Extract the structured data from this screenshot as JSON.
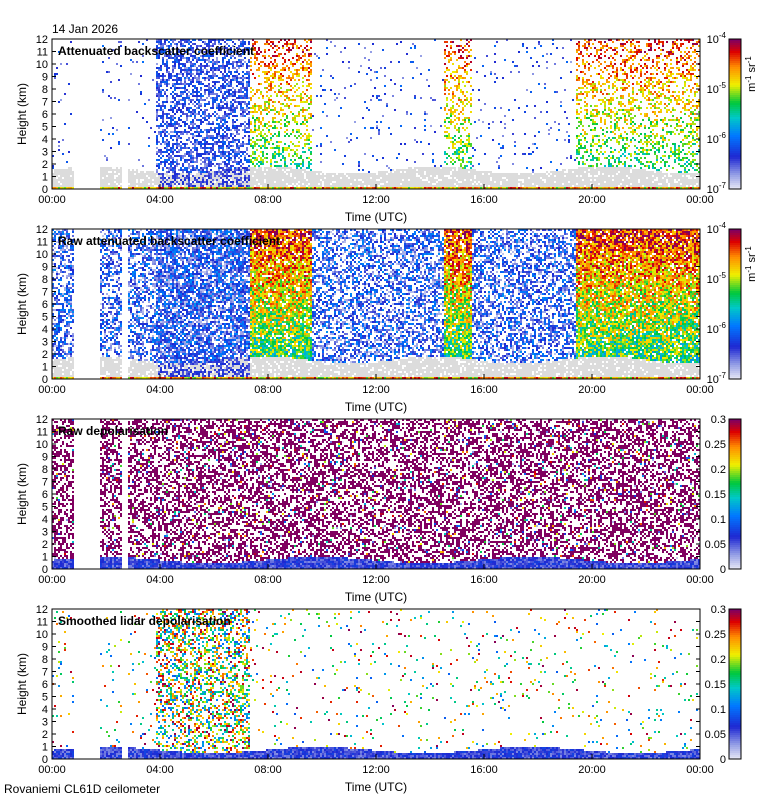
{
  "date": "14 Jan 2026",
  "footer": "Rovaniemi CL61D ceilometer",
  "colors": {
    "background_gray": "#dcdcdc",
    "purple": "#800060",
    "blue": "#1e2fd0"
  },
  "chart_data": [
    {
      "type": "heatmap",
      "title": "Attenuated backscatter coefficient",
      "xlabel": "Time (UTC)",
      "ylabel": "Height (km)",
      "xlim": [
        0,
        24
      ],
      "ylim": [
        0,
        12
      ],
      "x_ticks": [
        "00:00",
        "04:00",
        "08:00",
        "12:00",
        "16:00",
        "20:00",
        "00:00"
      ],
      "y_ticks": [
        "0",
        "1",
        "2",
        "3",
        "4",
        "5",
        "6",
        "7",
        "8",
        "9",
        "10",
        "11",
        "12"
      ],
      "colorbar": {
        "scale": "log",
        "range": [
          1e-07,
          0.0001
        ],
        "ticks": [
          "10-4",
          "10-5",
          "10-6",
          "10-7"
        ],
        "unit": "m-1 sr-1"
      }
    },
    {
      "type": "heatmap",
      "title": "Raw attenuated backscatter coefficient",
      "xlabel": "Time (UTC)",
      "ylabel": "Height (km)",
      "xlim": [
        0,
        24
      ],
      "ylim": [
        0,
        12
      ],
      "x_ticks": [
        "00:00",
        "04:00",
        "08:00",
        "12:00",
        "16:00",
        "20:00",
        "00:00"
      ],
      "y_ticks": [
        "0",
        "1",
        "2",
        "3",
        "4",
        "5",
        "6",
        "7",
        "8",
        "9",
        "10",
        "11",
        "12"
      ],
      "colorbar": {
        "scale": "log",
        "range": [
          1e-07,
          0.0001
        ],
        "ticks": [
          "10-4",
          "10-5",
          "10-6",
          "10-7"
        ],
        "unit": "m-1 sr-1"
      }
    },
    {
      "type": "heatmap",
      "title": "Raw depolarisation",
      "xlabel": "Time (UTC)",
      "ylabel": "Height (km)",
      "xlim": [
        0,
        24
      ],
      "ylim": [
        0,
        12
      ],
      "x_ticks": [
        "00:00",
        "04:00",
        "08:00",
        "12:00",
        "16:00",
        "20:00",
        "00:00"
      ],
      "y_ticks": [
        "0",
        "1",
        "2",
        "3",
        "4",
        "5",
        "6",
        "7",
        "8",
        "9",
        "10",
        "11",
        "12"
      ],
      "colorbar": {
        "scale": "linear",
        "range": [
          0,
          0.3
        ],
        "ticks": [
          "0.3",
          "0.25",
          "0.2",
          "0.15",
          "0.1",
          "0.05",
          "0"
        ],
        "unit": ""
      }
    },
    {
      "type": "heatmap",
      "title": "Smoothed lidar depolarisation",
      "xlabel": "Time (UTC)",
      "ylabel": "Height (km)",
      "xlim": [
        0,
        24
      ],
      "ylim": [
        0,
        12
      ],
      "x_ticks": [
        "00:00",
        "04:00",
        "08:00",
        "12:00",
        "16:00",
        "20:00",
        "00:00"
      ],
      "y_ticks": [
        "0",
        "1",
        "2",
        "3",
        "4",
        "5",
        "6",
        "7",
        "8",
        "9",
        "10",
        "11",
        "12"
      ],
      "colorbar": {
        "scale": "linear",
        "range": [
          0,
          0.3
        ],
        "ticks": [
          "0.3",
          "0.25",
          "0.2",
          "0.15",
          "0.1",
          "0.05",
          "0"
        ],
        "unit": ""
      }
    }
  ]
}
